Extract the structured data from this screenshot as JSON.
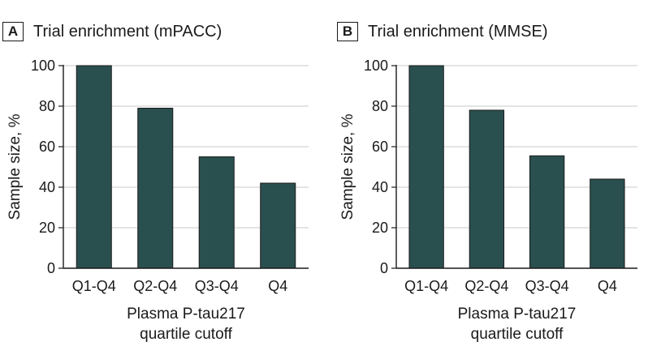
{
  "chart_data": [
    {
      "panel": "A",
      "type": "bar",
      "title": "Trial enrichment (mPACC)",
      "categories": [
        "Q1-Q4",
        "Q2-Q4",
        "Q3-Q4",
        "Q4"
      ],
      "values": [
        100,
        79,
        55,
        42
      ],
      "ylabel": "Sample size, %",
      "xlabel": [
        "Plasma P-tau217",
        "quartile cutoff"
      ],
      "ylim": [
        0,
        100
      ],
      "yticks": [
        0,
        20,
        40,
        60,
        80,
        100
      ],
      "grid": true,
      "bar_color": "#2a4f4f"
    },
    {
      "panel": "B",
      "type": "bar",
      "title": "Trial enrichment (MMSE)",
      "categories": [
        "Q1-Q4",
        "Q2-Q4",
        "Q3-Q4",
        "Q4"
      ],
      "values": [
        100,
        78,
        55.5,
        44
      ],
      "ylabel": "Sample size, %",
      "xlabel": [
        "Plasma P-tau217",
        "quartile cutoff"
      ],
      "ylim": [
        0,
        100
      ],
      "yticks": [
        0,
        20,
        40,
        60,
        80,
        100
      ],
      "grid": true,
      "bar_color": "#2a4f4f"
    }
  ]
}
